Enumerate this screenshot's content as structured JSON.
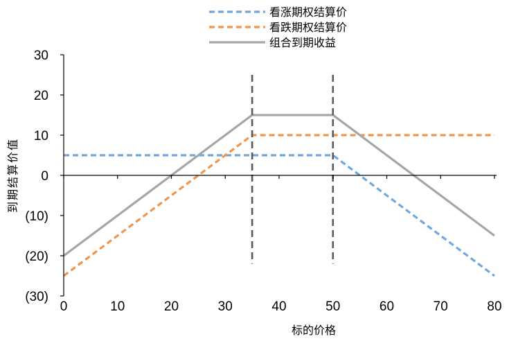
{
  "chart_data": {
    "type": "line",
    "xlabel": "标的价格",
    "ylabel": "到期结算价值",
    "xlim": [
      0,
      80
    ],
    "ylim": [
      -30,
      30
    ],
    "x_ticks": [
      0,
      10,
      20,
      30,
      40,
      50,
      60,
      70,
      80
    ],
    "x_tick_labels": [
      "0",
      "10",
      "20",
      "30",
      "40",
      "50",
      "60",
      "70",
      "80"
    ],
    "y_ticks": [
      30,
      20,
      10,
      0,
      -10,
      -20,
      -30
    ],
    "y_tick_labels": [
      "30",
      "20",
      "10",
      "0",
      "(10)",
      "(20)",
      "(30)"
    ],
    "grid": false,
    "legend_position": "top-center",
    "series": [
      {
        "name": "看涨期权结算价",
        "color": "#6FA8DC",
        "style": "dashed",
        "x": [
          0,
          50,
          80
        ],
        "y": [
          5,
          5,
          -25
        ]
      },
      {
        "name": "看跌期权结算价",
        "color": "#F0954B",
        "style": "dashed",
        "x": [
          0,
          35,
          80
        ],
        "y": [
          -25,
          10,
          10
        ]
      },
      {
        "name": "组合到期收益",
        "color": "#A6A6A6",
        "style": "solid",
        "x": [
          0,
          35,
          50,
          80
        ],
        "y": [
          -20,
          15,
          15,
          -15
        ]
      }
    ],
    "reference_lines": [
      {
        "x": 35,
        "y_range": [
          -22,
          25
        ],
        "color": "#595959",
        "style": "dashed"
      },
      {
        "x": 50,
        "y_range": [
          -22,
          25
        ],
        "color": "#595959",
        "style": "dashed"
      }
    ]
  }
}
